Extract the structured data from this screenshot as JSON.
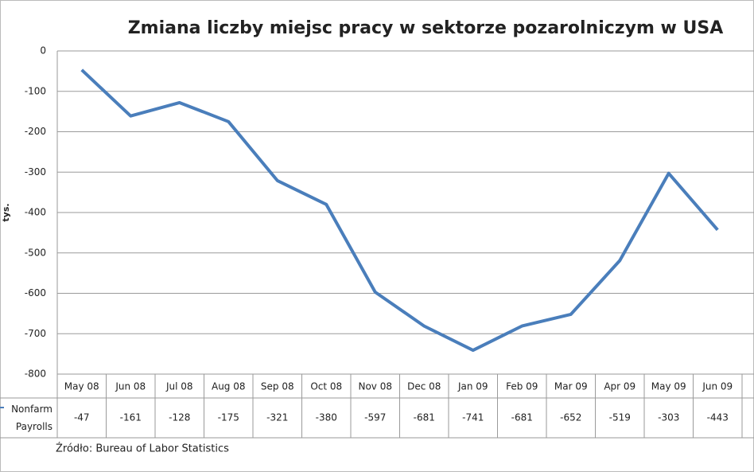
{
  "chart_data": {
    "type": "line",
    "title": "Zmiana liczby miejsc pracy w sektorze pozarolniczym w USA",
    "y_label": "tys.",
    "source": "Źródło:  Bureau of Labor Statistics",
    "categories": [
      "May 08",
      "Jun 08",
      "Jul 08",
      "Aug 08",
      "Sep 08",
      "Oct 08",
      "Nov 08",
      "Dec 08",
      "Jan 09",
      "Feb 09",
      "Mar 09",
      "Apr 09",
      "May 09",
      "Jun 09"
    ],
    "series": [
      {
        "name": "Nonfarm Payrolls",
        "color": "#4a7ebb",
        "values": [
          -47,
          -161,
          -128,
          -175,
          -321,
          -380,
          -597,
          -681,
          -741,
          -681,
          -652,
          -519,
          -303,
          -443
        ]
      }
    ],
    "ylim": [
      -800,
      0
    ],
    "yticks": [
      0,
      -100,
      -200,
      -300,
      -400,
      -500,
      -600,
      -700,
      -800
    ],
    "grid": true
  }
}
